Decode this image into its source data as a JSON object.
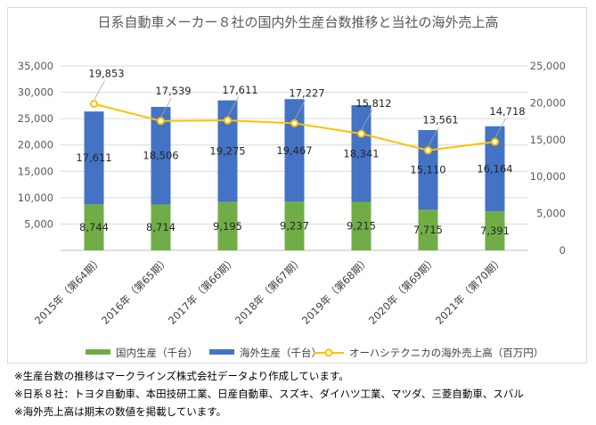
{
  "chart_data": {
    "type": "bar",
    "title": "日系自動車メーカー８社の国内外生産台数推移と当社の海外売上高",
    "categories": [
      "2015年（第64期）",
      "2016年（第65期）",
      "2017年（第66期）",
      "2018年（第67期）",
      "2019年（第68期）",
      "2020年（第69期）",
      "2021年（第70期）"
    ],
    "left_axis": {
      "min": 0,
      "max": 35000,
      "ticks": [
        "5,000",
        "10,000",
        "15,000",
        "20,000",
        "25,000",
        "30,000",
        "35,000"
      ]
    },
    "right_axis": {
      "min": 0,
      "max": 25000,
      "ticks": [
        "0",
        "5,000",
        "10,000",
        "15,000",
        "20,000",
        "25,000"
      ]
    },
    "series": [
      {
        "name": "国内生産（千台）",
        "type": "stacked-bar",
        "axis": "left",
        "color": "#70ad47",
        "values": [
          8744,
          8714,
          9195,
          9237,
          9215,
          7715,
          7391
        ],
        "labels": [
          "8,744",
          "8,714",
          "9,195",
          "9,237",
          "9,215",
          "7,715",
          "7,391"
        ]
      },
      {
        "name": "海外生産（千台）",
        "type": "stacked-bar",
        "axis": "left",
        "color": "#4472c4",
        "values": [
          17611,
          18506,
          19275,
          19467,
          18341,
          15110,
          16164
        ],
        "labels": [
          "17,611",
          "18,506",
          "19,275",
          "19,467",
          "18,341",
          "15,110",
          "16,164"
        ]
      },
      {
        "name": "オーハシテクニカの海外売上高（百万円）",
        "type": "line",
        "axis": "right",
        "color": "#ffc000",
        "values": [
          19853,
          17539,
          17611,
          17227,
          15812,
          13561,
          14718
        ],
        "labels": [
          "19,853",
          "17,539",
          "17,611",
          "17,227",
          "15,812",
          "13,561",
          "14,718"
        ]
      }
    ],
    "grid": true,
    "legend": "bottom"
  },
  "notes": [
    "※生産台数の推移はマークラインズ株式会社データより作成しています。",
    "※日系８社：トヨタ自動車、本田技研工業、日産自動車、スズキ、ダイハツ工業、マツダ、三菱自動車、スバル",
    "※海外売上高は期末の数値を掲載しています。"
  ]
}
